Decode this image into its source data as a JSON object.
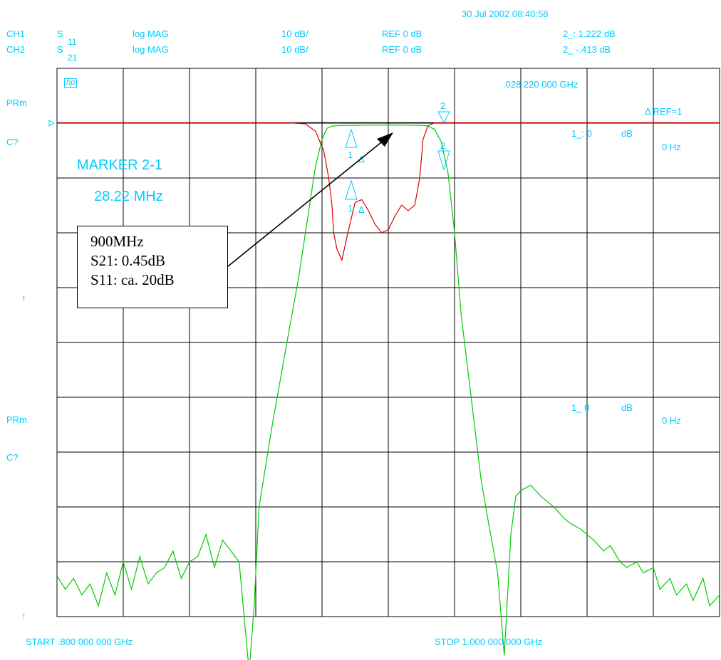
{
  "header": {
    "datetime": "30 Jul 2002  08:40:58",
    "ch1": {
      "label": "CH1",
      "param": "S",
      "param_sub": "11",
      "format": "log MAG",
      "scale": "10 dB/",
      "ref": "REF 0 dB",
      "marker": "2_: 1.222  dB"
    },
    "ch2": {
      "label": "CH2",
      "param": "S",
      "param_sub": "21",
      "format": "log MAG",
      "scale": "10 dB/",
      "ref": "REF 0 dB",
      "marker": "2_ -.413  dB"
    }
  },
  "left_labels": {
    "prm_top": "PRm",
    "c_top": "C?",
    "arrow_top": "↑",
    "prm_bottom": "PRm",
    "c_bottom": "C?",
    "arrow_bottom": "↑"
  },
  "grid_annotations": {
    "logo": "hp",
    "marker_freq": ".028 220 000 GHz",
    "delta_ref": "Δ REF=1",
    "m1_top": "1_: 0",
    "db_top": "dB",
    "hz_top": "0 Hz",
    "m1_bottom": "1_ 0",
    "db_bottom": "dB",
    "hz_bottom": "0 Hz",
    "marker_title": "MARKER 2-1",
    "marker_value": "28.22 MHz"
  },
  "markers": {
    "m2": "2",
    "m1": "1",
    "delta": "Δ"
  },
  "note": {
    "line1": "900MHz",
    "line2": "S21: 0.45dB",
    "line3": "S11: ca. 20dB"
  },
  "footer": {
    "start": "START  .800 000 000 GHz",
    "stop": "STOP  1.000 000 000 GHz"
  },
  "colors": {
    "grid": "#000000",
    "text": "#00ccff",
    "s11": "#dd0000",
    "s21": "#00cc00",
    "marker": "#00ccff"
  },
  "chart_data": {
    "type": "line",
    "x_start_ghz": 0.8,
    "x_stop_ghz": 1.0,
    "y_ref_db": 0,
    "y_scale_db_per_div": 10,
    "divisions_x": 10,
    "divisions_y": 10,
    "grid": true,
    "series": [
      {
        "name": "S11",
        "x": [
          0.8,
          0.85,
          0.87,
          0.875,
          0.878,
          0.8805,
          0.882,
          0.883,
          0.8835,
          0.8845,
          0.886,
          0.888,
          0.89,
          0.892,
          0.894,
          0.896,
          0.898,
          0.9,
          0.902,
          0.904,
          0.906,
          0.908,
          0.9095,
          0.9105,
          0.912,
          0.914,
          0.916,
          0.92,
          0.95,
          1.0
        ],
        "y": [
          0,
          0,
          0,
          -0.2,
          -1.5,
          -5,
          -10,
          -15,
          -20,
          -23,
          -25,
          -19.5,
          -14.5,
          -14,
          -16,
          -18.5,
          -20,
          -19.5,
          -17,
          -15,
          -16,
          -15,
          -10,
          -3,
          -0.5,
          0,
          0,
          0,
          0,
          0
        ]
      },
      {
        "name": "S21",
        "x": [
          0.8,
          0.8025,
          0.805,
          0.8075,
          0.81,
          0.8125,
          0.815,
          0.8175,
          0.82,
          0.8225,
          0.825,
          0.8275,
          0.83,
          0.8325,
          0.835,
          0.8375,
          0.84,
          0.8425,
          0.845,
          0.8475,
          0.85,
          0.8525,
          0.855,
          0.8565,
          0.858,
          0.8595,
          0.861,
          0.865,
          0.87,
          0.873,
          0.876,
          0.878,
          0.88,
          0.8815,
          0.883,
          0.885,
          0.89,
          0.9,
          0.91,
          0.912,
          0.914,
          0.916,
          0.918,
          0.92,
          0.922,
          0.925,
          0.928,
          0.93,
          0.933,
          0.935,
          0.937,
          0.9385,
          0.94,
          0.943,
          0.946,
          0.95,
          0.953,
          0.955,
          0.958,
          0.96,
          0.962,
          0.965,
          0.967,
          0.97,
          0.972,
          0.975,
          0.977,
          0.98,
          0.982,
          0.985,
          0.987,
          0.99,
          0.992,
          0.995,
          0.997,
          1.0
        ],
        "y": [
          -82.5,
          -85,
          -83,
          -86,
          -84,
          -88,
          -82,
          -86,
          -80,
          -85,
          -79,
          -84,
          -82,
          -81,
          -78,
          -83,
          -80,
          -79,
          -75,
          -81,
          -76,
          -78,
          -80,
          -90,
          -100,
          -88,
          -70,
          -55,
          -38,
          -28,
          -16,
          -8,
          -3,
          -1,
          -0.6,
          -0.5,
          -0.45,
          -0.4,
          -0.45,
          -0.6,
          -1.2,
          -3.5,
          -9,
          -20,
          -35,
          -50,
          -65,
          -72,
          -82,
          -97,
          -75,
          -68,
          -67,
          -66,
          -68,
          -70,
          -72,
          -73,
          -74,
          -75,
          -76,
          -78,
          -77,
          -80,
          -81,
          -80,
          -82,
          -81,
          -85,
          -83,
          -86,
          -84,
          -87,
          -83,
          -88,
          -86
        ]
      }
    ]
  }
}
